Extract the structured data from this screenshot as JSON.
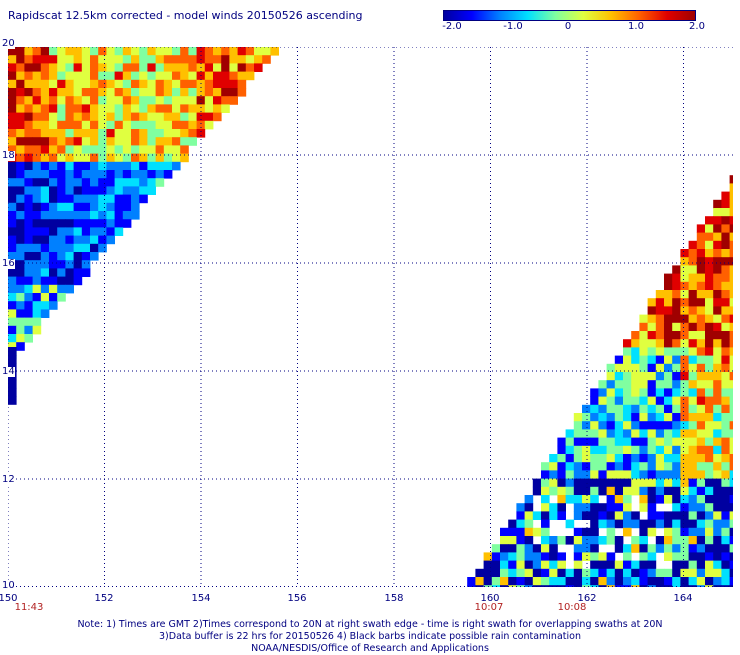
{
  "title": "Rapidscat 12.5km corrected - model winds 20150526 ascending",
  "colorbar": {
    "ticks": [
      "-2.0",
      "-1.0",
      "0",
      "1.0",
      "2.0"
    ],
    "tick_values": [
      -2.0,
      -1.0,
      0,
      1.0,
      2.0
    ],
    "colors": [
      "#0000a0",
      "#0000ff",
      "#0080ff",
      "#00e0ff",
      "#80ffa0",
      "#e0ff40",
      "#ffc000",
      "#ff6000",
      "#e00000",
      "#a00000"
    ]
  },
  "map": {
    "lon_range": [
      150,
      165
    ],
    "lat_range": [
      10,
      20
    ],
    "lon_labels": [
      "150",
      "152",
      "154",
      "156",
      "158",
      "160",
      "162",
      "164"
    ],
    "lat_labels": [
      "20",
      "18",
      "16",
      "14",
      "12",
      "10"
    ],
    "grid": "dotted",
    "time_labels": [
      "11:43",
      "10:07",
      "10:08"
    ]
  },
  "notes": [
    "Note: 1) Times are GMT 2)Times correspond to 20N at right swath edge - time is right swath for overlapping swaths at 20N",
    "3)Data buffer is 22 hrs for 20150526 4) Black barbs indicate possible rain contamination",
    "NOAA/NESDIS/Office of Research and Applications"
  ]
}
